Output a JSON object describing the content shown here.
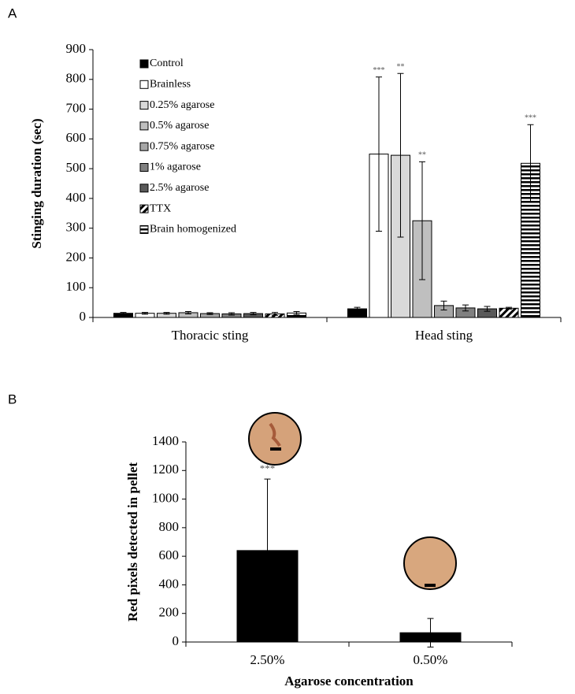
{
  "chart_data": [
    {
      "type": "bar",
      "panel": "A",
      "ylabel": "Stinging duration (sec)",
      "categories": [
        "Thoracic sting",
        "Head sting"
      ],
      "ylim": [
        0,
        900
      ],
      "yticks": [
        0,
        100,
        200,
        300,
        400,
        500,
        600,
        700,
        800,
        900
      ],
      "legend": "upper-left",
      "series": [
        {
          "name": "Control",
          "color": "#000000",
          "values": [
            14,
            29
          ],
          "errors": [
            3,
            5
          ],
          "annotations": [
            null,
            null
          ]
        },
        {
          "name": "Brainless",
          "color": "#ffffff",
          "values": [
            14,
            549
          ],
          "errors": [
            3,
            259
          ],
          "annotations": [
            null,
            "***"
          ]
        },
        {
          "name": "0.25% agarose",
          "color": "#d9d9d9",
          "values": [
            14,
            545
          ],
          "errors": [
            3,
            275
          ],
          "annotations": [
            null,
            "**"
          ]
        },
        {
          "name": "0.5% agarose",
          "color": "#bfbfbf",
          "values": [
            16,
            325
          ],
          "errors": [
            4,
            198
          ],
          "annotations": [
            null,
            "**"
          ]
        },
        {
          "name": "0.75% agarose",
          "color": "#a6a6a6",
          "values": [
            13,
            40
          ],
          "errors": [
            3,
            15
          ],
          "annotations": [
            null,
            null
          ]
        },
        {
          "name": "1% agarose",
          "color": "#808080",
          "values": [
            12,
            32
          ],
          "errors": [
            4,
            10
          ],
          "annotations": [
            null,
            null
          ]
        },
        {
          "name": "2.5% agarose",
          "color": "#595959",
          "values": [
            13,
            29
          ],
          "errors": [
            4,
            8
          ],
          "annotations": [
            null,
            null
          ]
        },
        {
          "name": "TTX",
          "color": "#000000",
          "pattern": "diagonal",
          "values": [
            12,
            31
          ],
          "errors": [
            5,
            3
          ],
          "annotations": [
            null,
            null
          ]
        },
        {
          "name": "Brain homogenized",
          "color": "#000000",
          "pattern": "horizontal",
          "values": [
            15,
            518
          ],
          "errors": [
            5,
            130
          ],
          "annotations": [
            null,
            "***"
          ]
        }
      ]
    },
    {
      "type": "bar",
      "panel": "B",
      "ylabel": "Red pixels detected in pellet",
      "xlabel": "Agarose concentration",
      "categories": [
        "2.50%",
        "0.50%"
      ],
      "ylim": [
        0,
        1400
      ],
      "yticks": [
        0,
        200,
        400,
        600,
        800,
        1000,
        1200,
        1400
      ],
      "series": [
        {
          "color": "#000000",
          "values": [
            640,
            65
          ],
          "errors": [
            500,
            100
          ],
          "annotations": [
            "***",
            null
          ]
        }
      ]
    }
  ]
}
